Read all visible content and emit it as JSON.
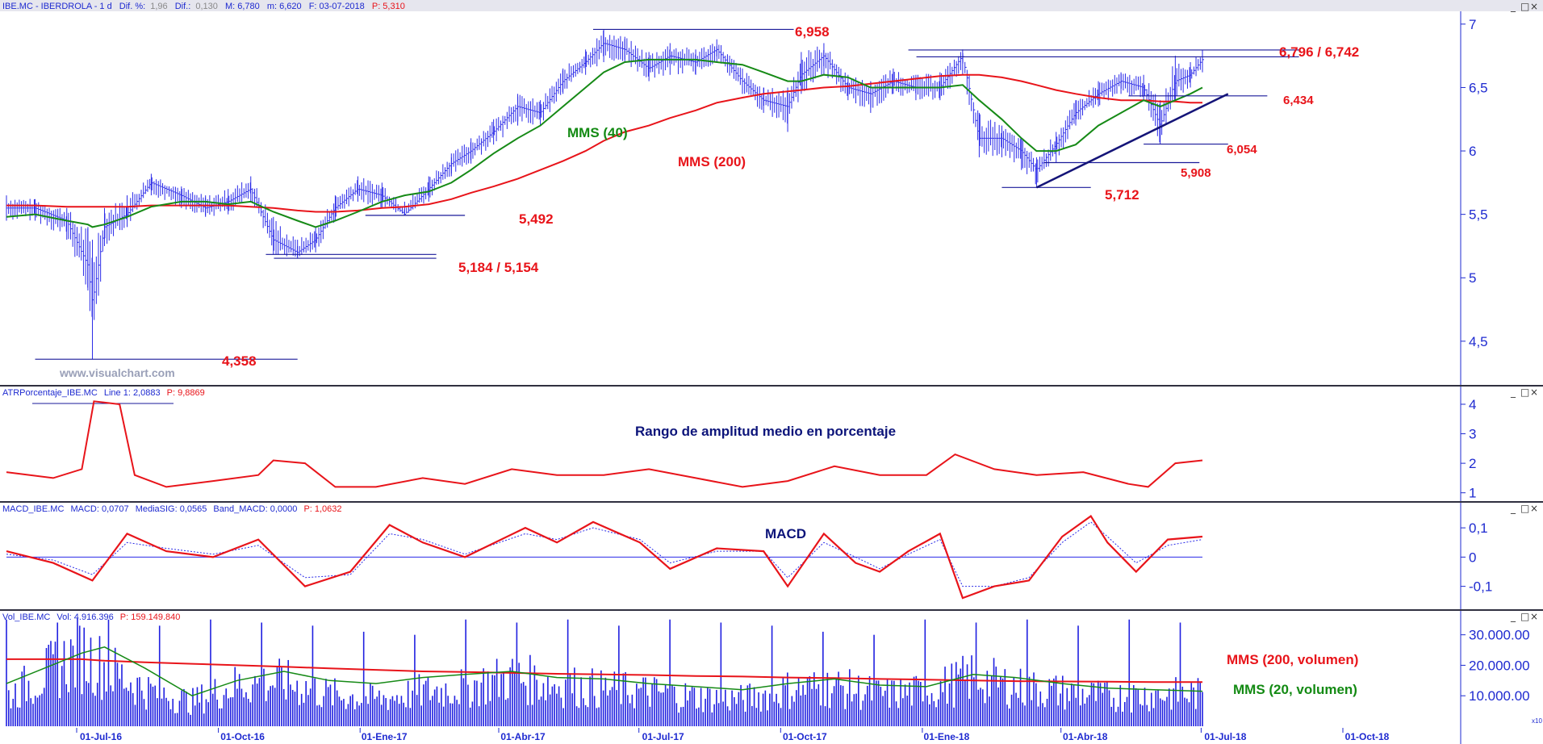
{
  "colors": {
    "price_bars": "#2a2ae8",
    "mms40": "#168a16",
    "mms200": "#e8141a",
    "axis": "#1e2ad0",
    "hline": "#1a1a9a",
    "trendline": "#141478",
    "atr": "#e8141a",
    "macd": "#e8141a",
    "macd_signal": "#2a2ae8",
    "volume": "#2020e0",
    "vol_mms200": "#e8141a",
    "vol_mms20": "#168a16"
  },
  "icons": [
    "minimize-icon",
    "maximize-icon",
    "close-icon"
  ],
  "price_panel": {
    "header": {
      "symbol": "IBE.MC - IBERDROLA - 1 d",
      "dif_pct_label": "Dif. %:",
      "dif_pct_value": "1,96",
      "dif_label": "Dif.:",
      "dif_value": "0,130",
      "max": "M: 6,780",
      "min": "m: 6,620",
      "date": "F: 03-07-2018",
      "p": "P: 5,310"
    },
    "watermark": "www.visualchart.com",
    "annotations": {
      "a_6958": "6,958",
      "a_6796": "6,796 / 6,742",
      "a_6434": "6,434",
      "a_6054": "6,054",
      "a_5908": "5,908",
      "a_5712": "5,712",
      "a_5492": "5,492",
      "a_5184": "5,184 / 5,154",
      "a_4358": "4,358",
      "mms40": "MMS (40)",
      "mms200": "MMS (200)"
    },
    "y_ticks": [
      "7",
      "6,5",
      "6",
      "5,5",
      "5",
      "4,5"
    ]
  },
  "atr_panel": {
    "header": {
      "name": "ATRPorcentaje_IBE.MC",
      "line": "Line 1: 2,0883",
      "p": "P: 9,8869"
    },
    "title": "Rango de amplitud medio en porcentaje",
    "y_ticks": [
      "4",
      "3",
      "2",
      "1"
    ]
  },
  "macd_panel": {
    "header": {
      "name": "MACD_IBE.MC",
      "macd": "MACD: 0,0707",
      "signal": "MediaSIG: 0,0565",
      "band": "Band_MACD: 0,0000",
      "p": "P: 1,0632"
    },
    "title": "MACD",
    "y_ticks": [
      "0,1",
      "0",
      "-0,1"
    ]
  },
  "vol_panel": {
    "header": {
      "name": "Vol_IBE.MC",
      "vol": "Vol: 4.916.396",
      "p": "P: 159.149.840"
    },
    "label_mms200": "MMS (200, volumen)",
    "label_mms20": "MMS (20, volumen)",
    "y_ticks": [
      "30.000.00",
      "20.000.00",
      "10.000.00"
    ],
    "corner": "x10"
  },
  "x_ticks": [
    "01-Jul-16",
    "01-Oct-16",
    "01-Ene-17",
    "01-Abr-17",
    "01-Jul-17",
    "01-Oct-17",
    "01-Ene-18",
    "01-Abr-18",
    "01-Jul-18",
    "01-Oct-18"
  ],
  "chart_data": {
    "type": "line",
    "title": "IBE.MC - IBERDROLA - 1 d",
    "x_range": [
      "2016-05-01",
      "2018-07-03"
    ],
    "price": {
      "ylim": [
        4.2,
        7.05
      ],
      "x": [
        "2016-05-01",
        "2016-05-20",
        "2016-06-10",
        "2016-06-24",
        "2016-06-27",
        "2016-07-05",
        "2016-07-20",
        "2016-08-05",
        "2016-08-25",
        "2016-09-10",
        "2016-09-25",
        "2016-10-10",
        "2016-10-25",
        "2016-11-10",
        "2016-11-22",
        "2016-12-05",
        "2016-12-20",
        "2017-01-05",
        "2017-01-20",
        "2017-02-05",
        "2017-02-20",
        "2017-03-05",
        "2017-03-20",
        "2017-04-05",
        "2017-04-20",
        "2017-05-05",
        "2017-05-20",
        "2017-06-01",
        "2017-06-15",
        "2017-07-01",
        "2017-07-15",
        "2017-08-01",
        "2017-08-15",
        "2017-09-01",
        "2017-09-15",
        "2017-10-01",
        "2017-10-10",
        "2017-10-25",
        "2017-11-10",
        "2017-11-25",
        "2017-12-10",
        "2017-12-25",
        "2018-01-10",
        "2018-01-25",
        "2018-02-05",
        "2018-02-20",
        "2018-03-05",
        "2018-03-15",
        "2018-03-28",
        "2018-04-10",
        "2018-04-25",
        "2018-05-10",
        "2018-05-25",
        "2018-06-05",
        "2018-06-15",
        "2018-06-25",
        "2018-07-03"
      ],
      "close": [
        5.55,
        5.55,
        5.45,
        5.1,
        4.8,
        5.4,
        5.5,
        5.75,
        5.65,
        5.55,
        5.6,
        5.7,
        5.3,
        5.2,
        5.3,
        5.55,
        5.7,
        5.65,
        5.5,
        5.7,
        5.9,
        6.0,
        6.15,
        6.35,
        6.3,
        6.55,
        6.7,
        6.85,
        6.8,
        6.65,
        6.75,
        6.7,
        6.8,
        6.55,
        6.4,
        6.35,
        6.6,
        6.75,
        6.5,
        6.45,
        6.55,
        6.5,
        6.5,
        6.75,
        6.1,
        6.1,
        6.0,
        5.85,
        6.05,
        6.3,
        6.45,
        6.55,
        6.5,
        6.2,
        6.55,
        6.6,
        6.72
      ],
      "high": [
        5.65,
        5.62,
        5.55,
        5.4,
        5.3,
        5.55,
        5.65,
        5.82,
        5.72,
        5.65,
        5.7,
        5.8,
        5.48,
        5.3,
        5.4,
        5.65,
        5.8,
        5.75,
        5.6,
        5.8,
        5.98,
        6.1,
        6.25,
        6.45,
        6.4,
        6.65,
        6.8,
        6.958,
        6.9,
        6.78,
        6.85,
        6.8,
        6.88,
        6.65,
        6.5,
        6.5,
        6.78,
        6.85,
        6.6,
        6.55,
        6.65,
        6.6,
        6.62,
        6.8,
        6.3,
        6.2,
        6.1,
        5.95,
        6.15,
        6.4,
        6.55,
        6.62,
        6.6,
        6.4,
        6.75,
        6.7,
        6.796
      ],
      "low": [
        5.45,
        5.45,
        5.3,
        4.9,
        4.358,
        5.25,
        5.4,
        5.65,
        5.55,
        5.48,
        5.5,
        5.6,
        5.184,
        5.154,
        5.2,
        5.45,
        5.6,
        5.55,
        5.492,
        5.6,
        5.8,
        5.9,
        6.05,
        6.2,
        6.2,
        6.45,
        6.6,
        6.7,
        6.7,
        6.55,
        6.6,
        6.6,
        6.7,
        6.45,
        6.3,
        6.15,
        6.45,
        6.6,
        6.4,
        6.3,
        6.45,
        6.4,
        6.4,
        6.6,
        5.95,
        5.95,
        5.85,
        5.712,
        5.908,
        6.2,
        6.35,
        6.45,
        6.4,
        6.054,
        6.4,
        6.5,
        6.62
      ],
      "mms40": [
        5.48,
        5.5,
        5.45,
        5.42,
        5.4,
        5.42,
        5.48,
        5.56,
        5.6,
        5.6,
        5.58,
        5.6,
        5.52,
        5.45,
        5.4,
        5.45,
        5.52,
        5.6,
        5.65,
        5.68,
        5.75,
        5.85,
        5.98,
        6.1,
        6.2,
        6.35,
        6.5,
        6.62,
        6.7,
        6.72,
        6.72,
        6.72,
        6.7,
        6.68,
        6.62,
        6.55,
        6.55,
        6.6,
        6.58,
        6.5,
        6.5,
        6.5,
        6.5,
        6.52,
        6.4,
        6.25,
        6.1,
        6.0,
        6.0,
        6.05,
        6.2,
        6.3,
        6.4,
        6.35,
        6.4,
        6.45,
        6.5
      ],
      "mms200": [
        5.57,
        5.57,
        5.56,
        5.56,
        5.56,
        5.56,
        5.56,
        5.57,
        5.57,
        5.57,
        5.57,
        5.56,
        5.55,
        5.53,
        5.52,
        5.52,
        5.53,
        5.55,
        5.56,
        5.58,
        5.62,
        5.67,
        5.72,
        5.78,
        5.85,
        5.92,
        6.0,
        6.08,
        6.15,
        6.2,
        6.26,
        6.32,
        6.38,
        6.42,
        6.45,
        6.47,
        6.48,
        6.5,
        6.51,
        6.53,
        6.55,
        6.57,
        6.59,
        6.6,
        6.6,
        6.58,
        6.55,
        6.52,
        6.48,
        6.45,
        6.42,
        6.4,
        6.4,
        6.39,
        6.39,
        6.38,
        6.38
      ]
    },
    "price_levels": [
      {
        "label": "6,958",
        "value": 6.958,
        "from": "2017-05-25",
        "to": "2017-10-05"
      },
      {
        "label": "6,796 / 6,742",
        "value": 6.796,
        "value2": 6.742,
        "from": "2017-12-20",
        "to": "2018-09-05"
      },
      {
        "label": "6,434",
        "value": 6.434,
        "from": "2018-05-15",
        "to": "2018-08-15"
      },
      {
        "label": "6,054",
        "value": 6.054,
        "from": "2018-05-25",
        "to": "2018-07-20"
      },
      {
        "label": "5,908",
        "value": 5.908,
        "from": "2018-03-20",
        "to": "2018-07-01"
      },
      {
        "label": "5,712",
        "value": 5.712,
        "from": "2018-02-20",
        "to": "2018-04-20"
      },
      {
        "label": "5,492",
        "value": 5.492,
        "from": "2016-12-25",
        "to": "2017-03-01"
      },
      {
        "label": "5,184 / 5,154",
        "value": 5.184,
        "value2": 5.154,
        "from": "2016-10-20",
        "to": "2017-02-10"
      },
      {
        "label": "4,358",
        "value": 4.358,
        "from": "2016-05-20",
        "to": "2016-11-10"
      }
    ],
    "trendline": {
      "from": [
        "2018-03-15",
        5.712
      ],
      "to": [
        "2018-07-20",
        6.45
      ]
    },
    "atr": {
      "ylim": [
        0.8,
        4.3
      ],
      "x": [
        "2016-05-01",
        "2016-06-01",
        "2016-06-20",
        "2016-06-28",
        "2016-07-15",
        "2016-07-25",
        "2016-08-15",
        "2016-09-15",
        "2016-10-15",
        "2016-10-25",
        "2016-11-15",
        "2016-12-05",
        "2017-01-01",
        "2017-02-01",
        "2017-03-01",
        "2017-04-01",
        "2017-05-01",
        "2017-06-01",
        "2017-07-01",
        "2017-08-01",
        "2017-09-01",
        "2017-10-01",
        "2017-11-01",
        "2017-12-01",
        "2018-01-01",
        "2018-01-20",
        "2018-02-15",
        "2018-03-15",
        "2018-04-15",
        "2018-05-15",
        "2018-05-28",
        "2018-06-15",
        "2018-07-03"
      ],
      "values": [
        1.7,
        1.5,
        1.8,
        4.1,
        4.0,
        1.6,
        1.2,
        1.4,
        1.6,
        2.1,
        2.0,
        1.2,
        1.2,
        1.5,
        1.3,
        1.8,
        1.6,
        1.6,
        1.8,
        1.5,
        1.2,
        1.4,
        1.9,
        1.6,
        1.6,
        2.3,
        1.8,
        1.6,
        1.7,
        1.3,
        1.2,
        2.0,
        2.1
      ]
    },
    "macd": {
      "ylim": [
        -0.17,
        0.15
      ],
      "x": [
        "2016-05-01",
        "2016-06-01",
        "2016-06-27",
        "2016-07-20",
        "2016-08-15",
        "2016-09-15",
        "2016-10-15",
        "2016-11-15",
        "2016-12-15",
        "2017-01-10",
        "2017-02-01",
        "2017-03-01",
        "2017-04-10",
        "2017-05-01",
        "2017-05-25",
        "2017-06-25",
        "2017-07-15",
        "2017-08-15",
        "2017-09-15",
        "2017-10-01",
        "2017-10-25",
        "2017-11-15",
        "2017-12-01",
        "2017-12-20",
        "2018-01-10",
        "2018-01-25",
        "2018-02-15",
        "2018-03-10",
        "2018-04-01",
        "2018-04-20",
        "2018-05-01",
        "2018-05-20",
        "2018-06-10",
        "2018-07-03"
      ],
      "macd": [
        0.02,
        -0.02,
        -0.08,
        0.08,
        0.02,
        0.0,
        0.06,
        -0.1,
        -0.05,
        0.11,
        0.05,
        0.0,
        0.1,
        0.05,
        0.12,
        0.05,
        -0.04,
        0.03,
        0.02,
        -0.1,
        0.08,
        -0.02,
        -0.05,
        0.02,
        0.08,
        -0.14,
        -0.1,
        -0.08,
        0.07,
        0.14,
        0.05,
        -0.05,
        0.06,
        0.07
      ],
      "signal": [
        0.01,
        -0.01,
        -0.06,
        0.05,
        0.03,
        0.01,
        0.04,
        -0.07,
        -0.06,
        0.08,
        0.06,
        0.01,
        0.08,
        0.06,
        0.1,
        0.06,
        -0.02,
        0.02,
        0.02,
        -0.07,
        0.05,
        0.0,
        -0.04,
        0.01,
        0.06,
        -0.1,
        -0.1,
        -0.07,
        0.05,
        0.12,
        0.07,
        -0.02,
        0.04,
        0.06
      ]
    },
    "volume": {
      "ylim": [
        0,
        36000000
      ],
      "x": [
        "2016-05-01",
        "2016-06-20",
        "2016-07-05",
        "2016-08-01",
        "2016-09-01",
        "2016-10-01",
        "2016-11-01",
        "2016-12-01",
        "2017-01-01",
        "2017-02-01",
        "2017-03-01",
        "2017-04-01",
        "2017-05-01",
        "2017-06-01",
        "2017-07-01",
        "2017-08-01",
        "2017-09-01",
        "2017-10-01",
        "2017-11-01",
        "2017-12-01",
        "2018-01-01",
        "2018-02-01",
        "2018-03-01",
        "2018-04-01",
        "2018-05-01",
        "2018-06-01",
        "2018-07-03"
      ],
      "values": [
        12000000,
        30000000,
        24000000,
        15000000,
        10000000,
        17000000,
        18000000,
        13000000,
        11000000,
        14000000,
        16000000,
        20000000,
        17000000,
        15000000,
        14000000,
        12000000,
        11000000,
        15000000,
        16000000,
        13000000,
        14000000,
        20000000,
        16000000,
        14000000,
        12000000,
        13000000,
        13000000
      ],
      "peaks": [
        35000000,
        34000000,
        35000000,
        33000000,
        35000000,
        34000000,
        33000000,
        31000000,
        30000000
      ],
      "mms200": [
        22000000,
        22000000,
        21500000,
        21000000,
        20500000,
        20000000,
        19500000,
        19000000,
        18500000,
        18000000,
        17800000,
        17500000,
        17200000,
        17000000,
        16800000,
        16500000,
        16300000,
        16000000,
        15800000,
        15500000,
        15300000,
        15000000,
        14800000,
        14700000,
        14600000,
        14500000,
        14500000
      ],
      "mms20": [
        14000000,
        24000000,
        26000000,
        19000000,
        10000000,
        15000000,
        18000000,
        15000000,
        14000000,
        16000000,
        17000000,
        18000000,
        16000000,
        15500000,
        14000000,
        13000000,
        12000000,
        14000000,
        15500000,
        13500000,
        13000000,
        17000000,
        16000000,
        14000000,
        12500000,
        12000000,
        11500000
      ]
    }
  }
}
